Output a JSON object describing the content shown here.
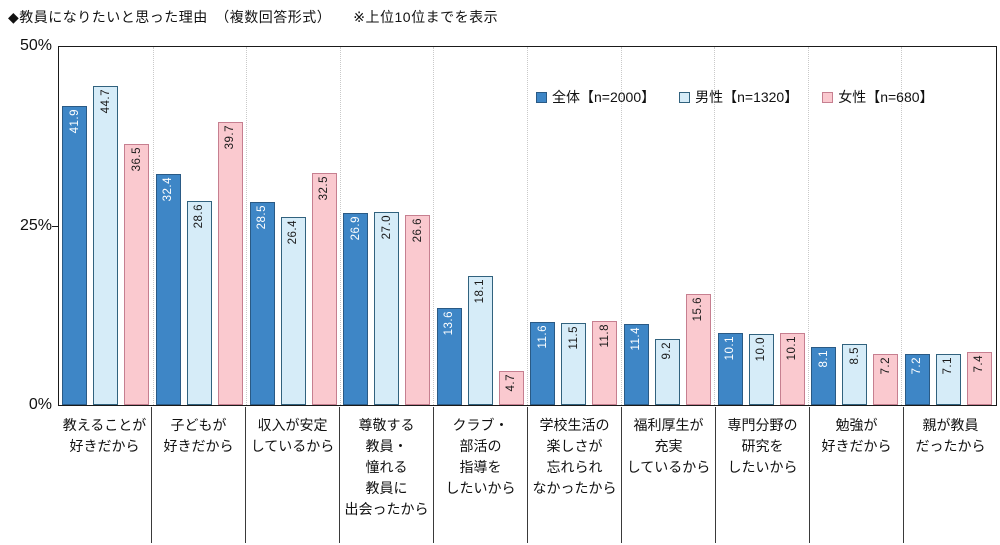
{
  "chart_data": {
    "type": "bar",
    "title": "◆教員になりたいと思った理由　（複数回答形式）　　※上位10位までを表示",
    "ytick_labels": [
      "50%",
      "25%",
      "0%"
    ],
    "ylim": [
      0,
      50
    ],
    "grid": "vertical-dotted-category-separators",
    "legend_position": "top-right-inside",
    "categories": [
      "教えることが\n好きだから",
      "子どもが\n好きだから",
      "収入が安定\nしているから",
      "尊敬する\n教員・\n憧れる\n教員に\n出会ったから",
      "クラブ・\n部活の\n指導を\nしたいから",
      "学校生活の\n楽しさが\n忘れられ\nなかったから",
      "福利厚生が\n充実\nしているから",
      "専門分野の\n研究を\nしたいから",
      "勉強が\n好きだから",
      "親が教員\nだったから"
    ],
    "series": [
      {
        "name": "全体【n=2000】",
        "values": [
          41.9,
          32.4,
          28.5,
          26.9,
          13.6,
          11.6,
          11.4,
          10.1,
          8.1,
          7.2
        ],
        "fill": "#3E86C6",
        "border": "#2A5A85",
        "label_color": "#ffffff"
      },
      {
        "name": "男性【n=1320】",
        "values": [
          44.7,
          28.6,
          26.4,
          27.0,
          18.1,
          11.5,
          9.2,
          10.0,
          8.5,
          7.1
        ],
        "fill": "#D6ECF8",
        "border": "#31627E",
        "label_color": "#1a1a1a"
      },
      {
        "name": "女性【n=680】",
        "values": [
          36.5,
          39.7,
          32.5,
          26.6,
          4.7,
          11.8,
          15.6,
          10.1,
          7.2,
          7.4
        ],
        "fill": "#FAC9CF",
        "border": "#C67F90",
        "label_color": "#1a1a1a"
      }
    ]
  }
}
